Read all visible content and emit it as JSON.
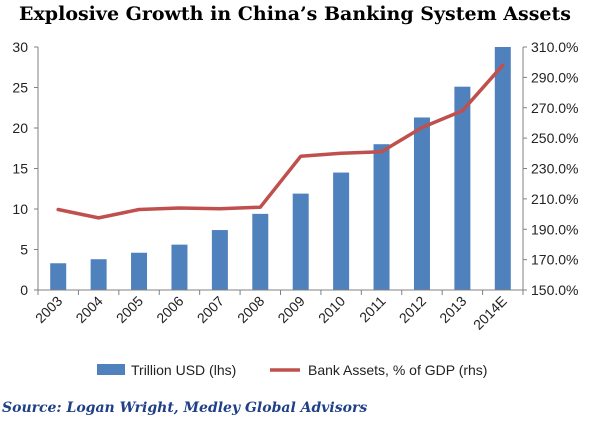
{
  "chart_data": {
    "type": "bar",
    "title": "Explosive Growth in China’s Banking System Assets",
    "categories": [
      "2003",
      "2004",
      "2005",
      "2006",
      "2007",
      "2008",
      "2009",
      "2010",
      "2011",
      "2012",
      "2013",
      "2014E"
    ],
    "series": [
      {
        "name": "Trillion USD (lhs)",
        "type": "bar",
        "axis": "left",
        "color": "#4f81bd",
        "values": [
          3.3,
          3.8,
          4.6,
          5.6,
          7.4,
          9.4,
          11.9,
          14.5,
          18.0,
          21.3,
          25.1,
          30.0
        ]
      },
      {
        "name": "Bank Assets, % of GDP (rhs)",
        "type": "line",
        "axis": "right",
        "color": "#c0504d",
        "values": [
          203.0,
          197.5,
          203.0,
          204.0,
          203.5,
          204.5,
          238.0,
          240.0,
          241.0,
          257.0,
          268.0,
          298.0
        ]
      }
    ],
    "y_left": {
      "min": 0,
      "max": 30,
      "ticks": [
        "0",
        "5",
        "10",
        "15",
        "20",
        "25",
        "30"
      ]
    },
    "y_right": {
      "min": 150,
      "max": 310,
      "ticks": [
        "150.0%",
        "170.0%",
        "190.0%",
        "210.0%",
        "230.0%",
        "250.0%",
        "270.0%",
        "290.0%",
        "310.0%"
      ]
    },
    "grid": false,
    "legend_position": "bottom",
    "source": "Source: Logan Wright, Medley Global Advisors"
  }
}
